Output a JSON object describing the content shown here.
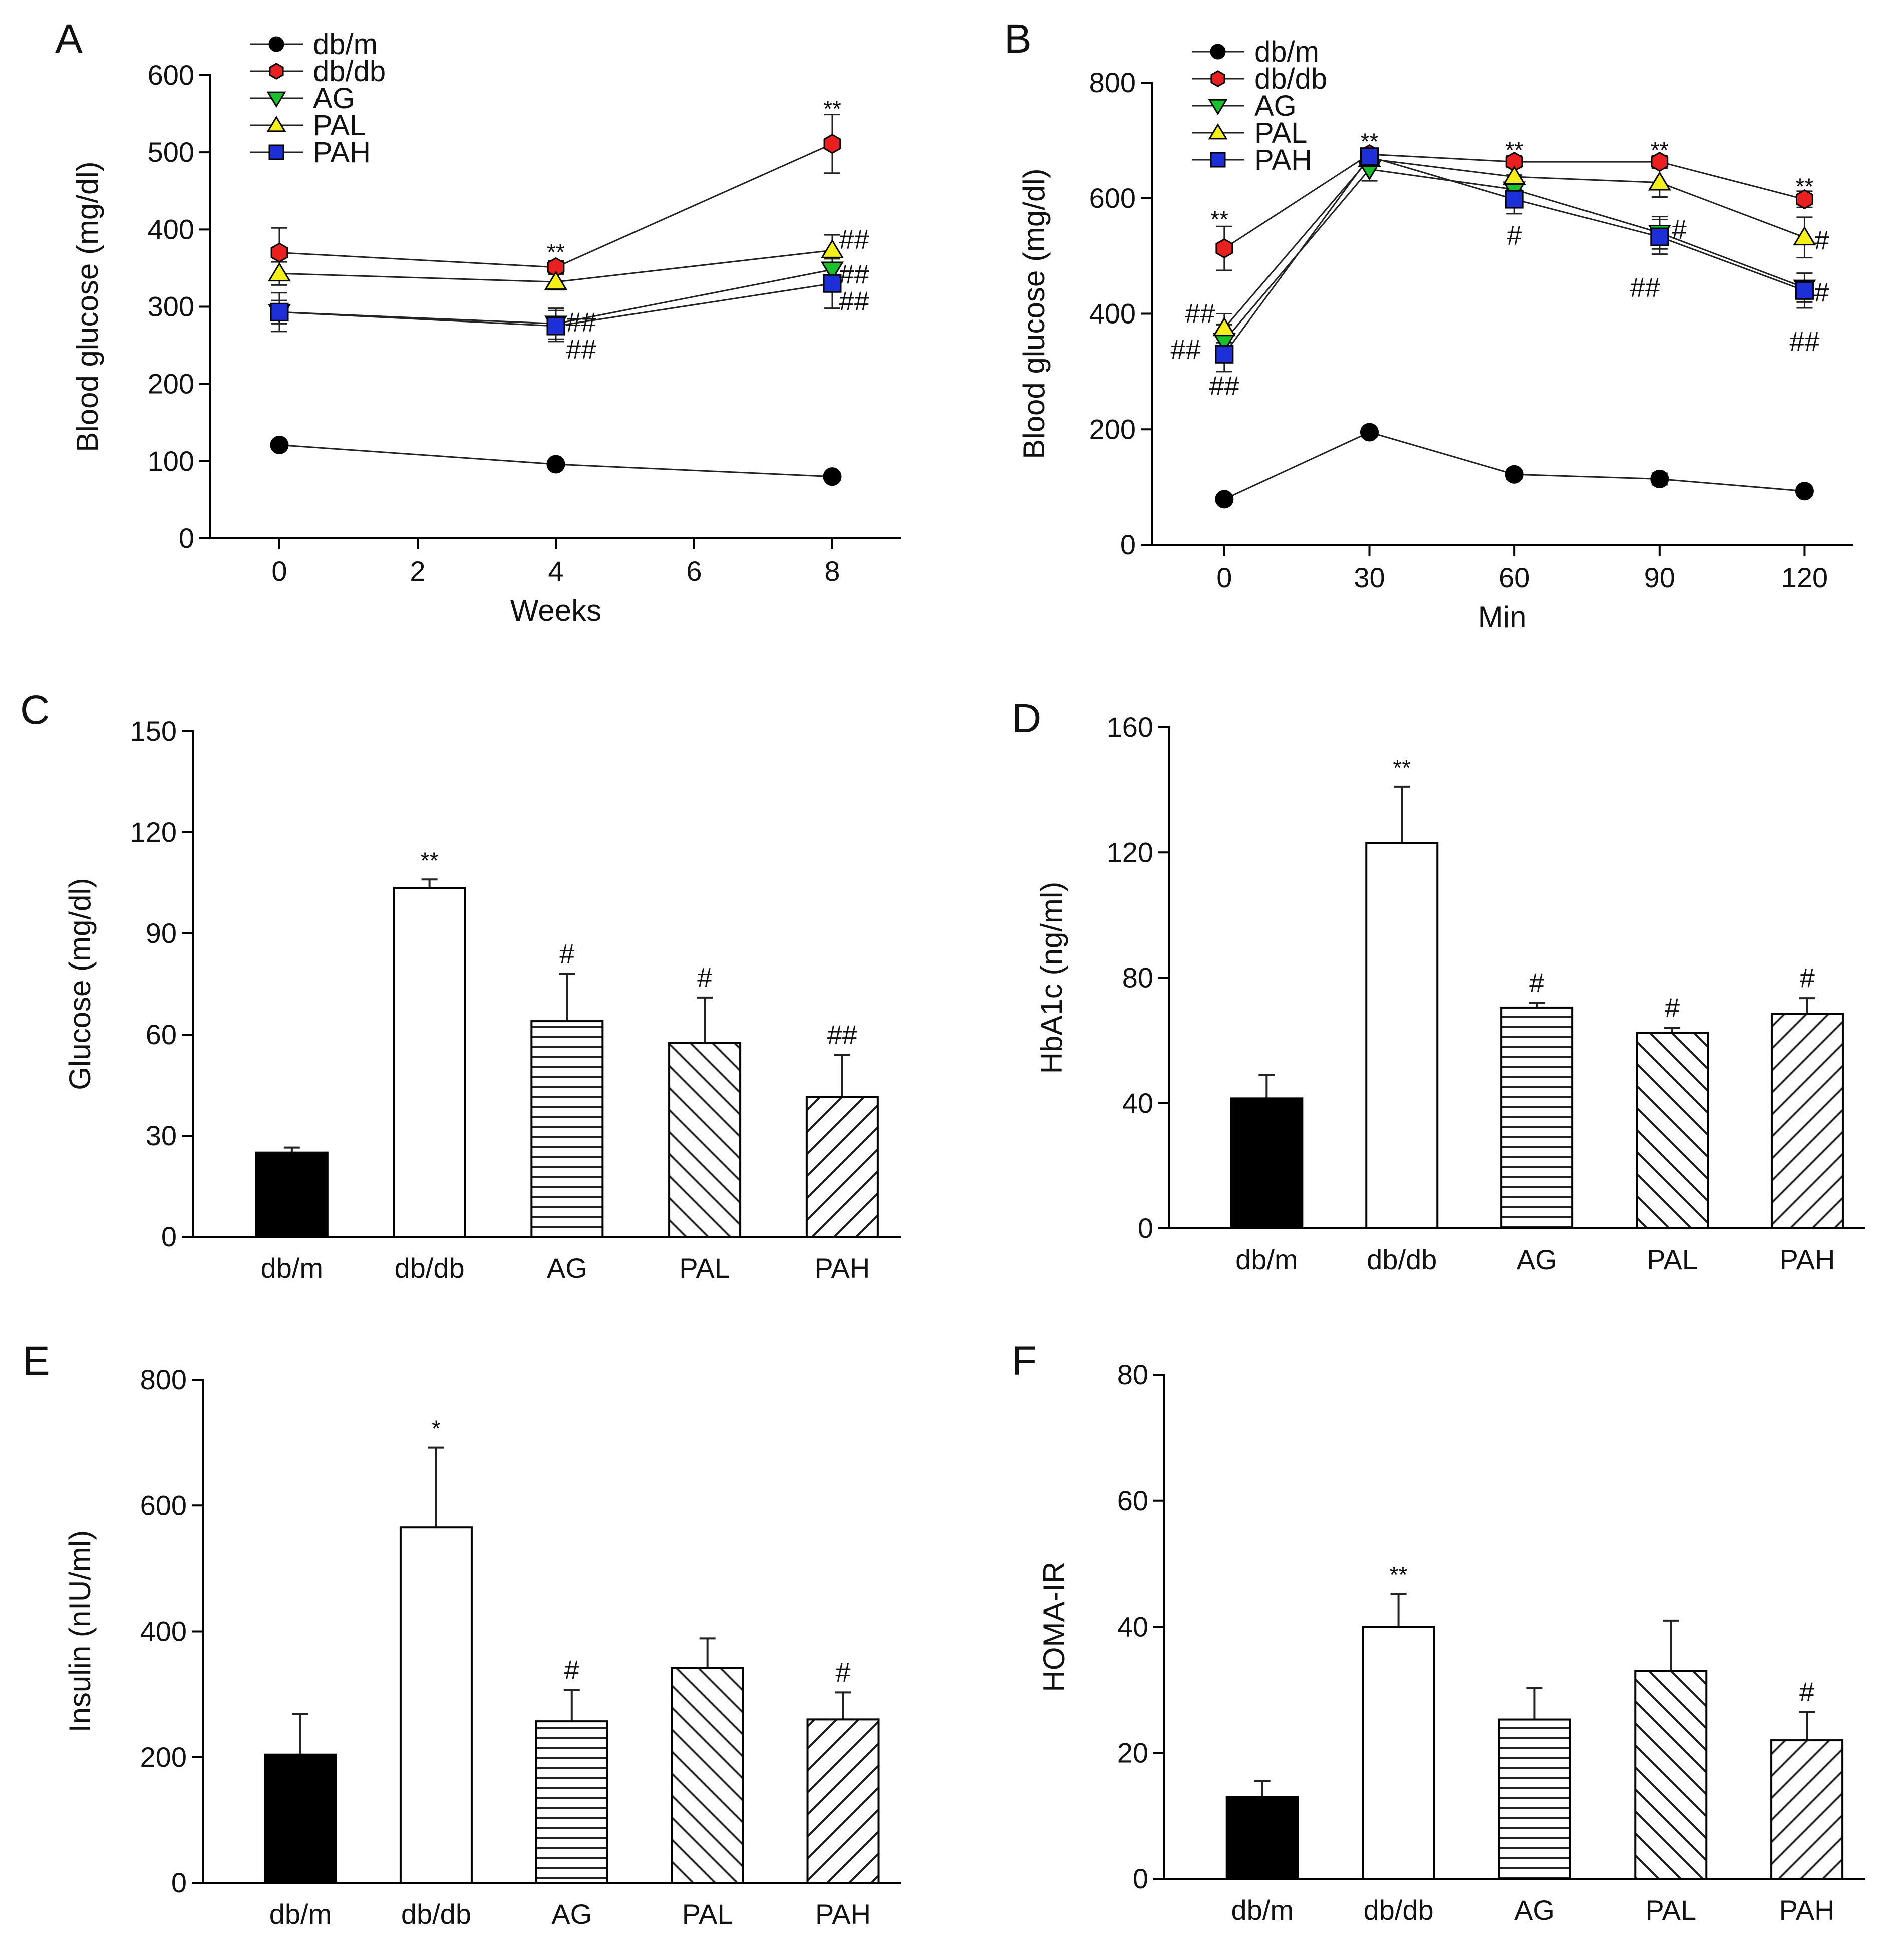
{
  "colors": {
    "db/m": "#000000",
    "db/db": "#e8201f",
    "AG": "#19c22a",
    "PAL": "#f4ee1a",
    "PAH": "#1d2fd6"
  },
  "chart_data": [
    {
      "id": "A",
      "type": "line",
      "panel_label": "A",
      "xlabel": "Weeks",
      "ylabel": "Blood glucose (mg/dl)",
      "xlim": [
        -1,
        9
      ],
      "ylim": [
        0,
        600
      ],
      "xticks": [
        0,
        2,
        4,
        6,
        8
      ],
      "yticks": [
        0,
        100,
        200,
        300,
        400,
        500,
        600
      ],
      "legend": [
        "db/m",
        "db/db",
        "AG",
        "PAL",
        "PAH"
      ],
      "x": [
        0,
        4,
        8
      ],
      "series": [
        {
          "name": "db/m",
          "marker": "circle",
          "values": [
            121,
            96,
            80
          ],
          "errors": [
            5,
            5,
            5
          ]
        },
        {
          "name": "db/db",
          "marker": "hexagon",
          "values": [
            370,
            351,
            511
          ],
          "errors": [
            32,
            8,
            38
          ]
        },
        {
          "name": "AG",
          "marker": "triangle-down",
          "values": [
            293,
            278,
            348
          ],
          "errors": [
            15,
            20,
            15
          ]
        },
        {
          "name": "PAL",
          "marker": "triangle-up",
          "values": [
            343,
            332,
            373
          ],
          "errors": [
            15,
            10,
            20
          ]
        },
        {
          "name": "PAH",
          "marker": "square",
          "values": [
            293,
            275,
            330
          ],
          "errors": [
            25,
            20,
            32
          ]
        }
      ],
      "annotations": [
        {
          "text": "**",
          "x": 4,
          "y": 372,
          "align": "middle"
        },
        {
          "text": "**",
          "x": 8,
          "y": 558,
          "align": "middle"
        },
        {
          "text": "##",
          "x": 4.15,
          "y": 280,
          "align": "start"
        },
        {
          "text": "##",
          "x": 4.15,
          "y": 245,
          "align": "start"
        },
        {
          "text": "##",
          "x": 8.1,
          "y": 387,
          "align": "start"
        },
        {
          "text": "##",
          "x": 8.1,
          "y": 342,
          "align": "start"
        },
        {
          "text": "##",
          "x": 8.1,
          "y": 307,
          "align": "start"
        }
      ]
    },
    {
      "id": "B",
      "type": "line",
      "panel_label": "B",
      "xlabel": "Min",
      "ylabel": "Blood glucose (mg/dl)",
      "xlim": [
        -15,
        130
      ],
      "ylim": [
        0,
        800
      ],
      "xticks": [
        0,
        30,
        60,
        90,
        120
      ],
      "yticks": [
        0,
        200,
        400,
        600,
        800
      ],
      "legend": [
        "db/m",
        "db/db",
        "AG",
        "PAL",
        "PAH"
      ],
      "x": [
        0,
        30,
        60,
        90,
        120
      ],
      "series": [
        {
          "name": "db/m",
          "marker": "circle",
          "values": [
            79,
            195,
            122,
            114,
            93
          ],
          "errors": [
            6,
            8,
            8,
            10,
            6
          ]
        },
        {
          "name": "db/db",
          "marker": "hexagon",
          "values": [
            513,
            676,
            663,
            663,
            598
          ],
          "errors": [
            38,
            10,
            10,
            10,
            14
          ]
        },
        {
          "name": "AG",
          "marker": "triangle-down",
          "values": [
            353,
            650,
            615,
            540,
            445
          ],
          "errors": [
            28,
            20,
            25,
            28,
            25
          ]
        },
        {
          "name": "PAL",
          "marker": "triangle-up",
          "values": [
            375,
            668,
            637,
            627,
            532
          ],
          "errors": [
            25,
            12,
            22,
            25,
            35
          ]
        },
        {
          "name": "PAH",
          "marker": "square",
          "values": [
            330,
            672,
            598,
            533,
            440
          ],
          "errors": [
            30,
            12,
            25,
            30,
            30
          ]
        }
      ],
      "annotations": [
        {
          "text": "**",
          "x": -1,
          "y": 565,
          "align": "middle"
        },
        {
          "text": "**",
          "x": 30,
          "y": 700,
          "align": "middle"
        },
        {
          "text": "**",
          "x": 60,
          "y": 685,
          "align": "middle"
        },
        {
          "text": "**",
          "x": 90,
          "y": 685,
          "align": "middle"
        },
        {
          "text": "**",
          "x": 120,
          "y": 622,
          "align": "middle"
        },
        {
          "text": "##",
          "x": -5,
          "y": 400,
          "align": "middle"
        },
        {
          "text": "##",
          "x": -8,
          "y": 338,
          "align": "middle"
        },
        {
          "text": "##",
          "x": 0,
          "y": 275,
          "align": "middle"
        },
        {
          "text": "#",
          "x": 60,
          "y": 535,
          "align": "middle"
        },
        {
          "text": "#",
          "x": 92.5,
          "y": 545,
          "align": "start"
        },
        {
          "text": "##",
          "x": 87,
          "y": 445,
          "align": "middle"
        },
        {
          "text": "#",
          "x": 122,
          "y": 527,
          "align": "start"
        },
        {
          "text": "#",
          "x": 122,
          "y": 437,
          "align": "start"
        },
        {
          "text": "##",
          "x": 120,
          "y": 352,
          "align": "middle"
        }
      ]
    },
    {
      "id": "C",
      "type": "bar",
      "panel_label": "C",
      "categories": [
        "db/m",
        "db/db",
        "AG",
        "PAL",
        "PAH"
      ],
      "patterns": [
        "solid",
        "empty",
        "horizontal",
        "backslash",
        "slash"
      ],
      "values": [
        25,
        103.5,
        64,
        57.5,
        41.5
      ],
      "errors": [
        1.5,
        2.5,
        14,
        13.5,
        12.5
      ],
      "sig": [
        "",
        "**",
        "#",
        "#",
        "##"
      ],
      "ylabel": "Glucose (mg/dl)",
      "ylim": [
        0,
        150
      ],
      "yticks": [
        0,
        30,
        60,
        90,
        120,
        150
      ]
    },
    {
      "id": "D",
      "type": "bar",
      "panel_label": "D",
      "categories": [
        "db/m",
        "db/db",
        "AG",
        "PAL",
        "PAH"
      ],
      "patterns": [
        "solid",
        "empty",
        "horizontal",
        "backslash",
        "slash"
      ],
      "values": [
        41.5,
        123,
        70.5,
        62.5,
        68.5
      ],
      "errors": [
        7.5,
        18,
        1.5,
        1.5,
        5
      ],
      "sig": [
        "",
        "**",
        "#",
        "#",
        "#"
      ],
      "ylabel": "HbA1c (ng/ml)",
      "ylim": [
        0,
        160
      ],
      "yticks": [
        0,
        40,
        80,
        120,
        160
      ]
    },
    {
      "id": "E",
      "type": "bar",
      "panel_label": "E",
      "categories": [
        "db/m",
        "db/db",
        "AG",
        "PAL",
        "PAH"
      ],
      "patterns": [
        "solid",
        "empty",
        "horizontal",
        "backslash",
        "slash"
      ],
      "values": [
        204,
        565,
        257,
        342,
        260
      ],
      "errors": [
        65,
        127,
        50,
        47,
        43
      ],
      "sig": [
        "",
        "*",
        "#",
        "",
        "#"
      ],
      "ylabel": "Insulin (nIU/ml)",
      "ylim": [
        0,
        800
      ],
      "yticks": [
        0,
        200,
        400,
        600,
        800
      ]
    },
    {
      "id": "F",
      "type": "bar",
      "panel_label": "F",
      "categories": [
        "db/m",
        "db/db",
        "AG",
        "PAL",
        "PAH"
      ],
      "patterns": [
        "solid",
        "empty",
        "horizontal",
        "backslash",
        "slash"
      ],
      "values": [
        13,
        40,
        25.3,
        33,
        22
      ],
      "errors": [
        2.5,
        5.2,
        5,
        8,
        4.5
      ],
      "sig": [
        "",
        "**",
        "",
        "",
        "#"
      ],
      "ylabel": "HOMA-IR",
      "ylim": [
        0,
        80
      ],
      "yticks": [
        0,
        20,
        40,
        60,
        80
      ]
    }
  ]
}
